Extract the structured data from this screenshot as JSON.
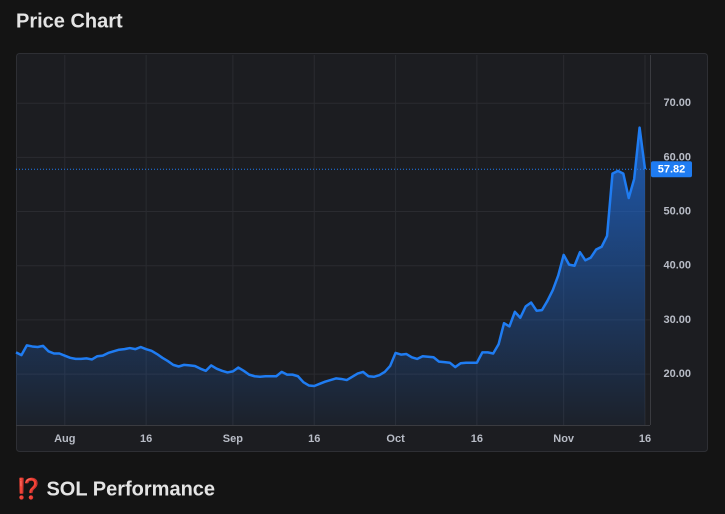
{
  "header": {
    "title": "Price Chart"
  },
  "chart_data": {
    "type": "area",
    "categories": [
      "Jul 23",
      "Jul 24",
      "Jul 25",
      "Jul 26",
      "Jul 27",
      "Jul 28",
      "Jul 29",
      "Jul 30",
      "Jul 31",
      "Aug 1",
      "Aug 2",
      "Aug 3",
      "Aug 4",
      "Aug 5",
      "Aug 6",
      "Aug 7",
      "Aug 8",
      "Aug 9",
      "Aug 10",
      "Aug 11",
      "Aug 12",
      "Aug 13",
      "Aug 14",
      "Aug 15",
      "Aug 16",
      "Aug 17",
      "Aug 18",
      "Aug 19",
      "Aug 20",
      "Aug 21",
      "Aug 22",
      "Aug 23",
      "Aug 24",
      "Aug 25",
      "Aug 26",
      "Aug 27",
      "Aug 28",
      "Aug 29",
      "Aug 30",
      "Aug 31",
      "Sep 1",
      "Sep 2",
      "Sep 3",
      "Sep 4",
      "Sep 5",
      "Sep 6",
      "Sep 7",
      "Sep 8",
      "Sep 9",
      "Sep 10",
      "Sep 11",
      "Sep 12",
      "Sep 13",
      "Sep 14",
      "Sep 15",
      "Sep 16",
      "Sep 17",
      "Sep 18",
      "Sep 19",
      "Sep 20",
      "Sep 21",
      "Sep 22",
      "Sep 23",
      "Sep 24",
      "Sep 25",
      "Sep 26",
      "Sep 27",
      "Sep 28",
      "Sep 29",
      "Sep 30",
      "Oct 1",
      "Oct 2",
      "Oct 3",
      "Oct 4",
      "Oct 5",
      "Oct 6",
      "Oct 7",
      "Oct 8",
      "Oct 9",
      "Oct 10",
      "Oct 11",
      "Oct 12",
      "Oct 13",
      "Oct 14",
      "Oct 15",
      "Oct 16",
      "Oct 17",
      "Oct 18",
      "Oct 19",
      "Oct 20",
      "Oct 21",
      "Oct 22",
      "Oct 23",
      "Oct 24",
      "Oct 25",
      "Oct 26",
      "Oct 27",
      "Oct 28",
      "Oct 29",
      "Oct 30",
      "Oct 31",
      "Nov 1",
      "Nov 2",
      "Nov 3",
      "Nov 4",
      "Nov 5",
      "Nov 6",
      "Nov 7",
      "Nov 8",
      "Nov 9",
      "Nov 10",
      "Nov 11",
      "Nov 12",
      "Nov 13",
      "Nov 14",
      "Nov 15",
      "Nov 16"
    ],
    "values": [
      24.0,
      23.5,
      25.3,
      25.1,
      25.0,
      25.2,
      24.2,
      23.8,
      23.8,
      23.4,
      23.0,
      22.8,
      22.8,
      22.9,
      22.7,
      23.3,
      23.4,
      23.9,
      24.2,
      24.5,
      24.6,
      24.8,
      24.6,
      25.0,
      24.6,
      24.3,
      23.7,
      23.0,
      22.4,
      21.7,
      21.4,
      21.7,
      21.6,
      21.5,
      21.0,
      20.6,
      21.6,
      21.0,
      20.6,
      20.3,
      20.5,
      21.2,
      20.6,
      19.9,
      19.6,
      19.5,
      19.6,
      19.6,
      19.6,
      20.4,
      19.9,
      19.9,
      19.6,
      18.5,
      17.9,
      17.8,
      18.2,
      18.6,
      18.9,
      19.2,
      19.1,
      18.9,
      19.5,
      20.1,
      20.4,
      19.6,
      19.5,
      19.8,
      20.4,
      21.5,
      23.9,
      23.6,
      23.7,
      23.1,
      22.8,
      23.3,
      23.2,
      23.1,
      22.3,
      22.2,
      22.1,
      21.3,
      22.0,
      22.1,
      22.1,
      22.1,
      24.0,
      24.0,
      23.8,
      25.5,
      29.4,
      28.8,
      31.5,
      30.4,
      32.5,
      33.2,
      31.7,
      31.8,
      33.5,
      35.5,
      38.2,
      42.0,
      40.2,
      40.0,
      42.5,
      41.0,
      41.5,
      43.0,
      43.5,
      45.5,
      57.0,
      57.5,
      57.0,
      52.5,
      56.0,
      65.5,
      57.82
    ],
    "color": "#1f7cf2",
    "ylim": [
      10.6,
      78.9
    ],
    "yticks": [
      {
        "value": 20,
        "label": "20.00"
      },
      {
        "value": 30,
        "label": "30.00"
      },
      {
        "value": 40,
        "label": "40.00"
      },
      {
        "value": 50,
        "label": "50.00"
      },
      {
        "value": 60,
        "label": "60.00"
      },
      {
        "value": 70,
        "label": "70.00"
      }
    ],
    "xticks": [
      {
        "value": "Aug 1",
        "label": "Aug"
      },
      {
        "value": "Aug 16",
        "label": "16"
      },
      {
        "value": "Sep 1",
        "label": "Sep"
      },
      {
        "value": "Sep 16",
        "label": "16"
      },
      {
        "value": "Oct 1",
        "label": "Oct"
      },
      {
        "value": "Oct 16",
        "label": "16"
      },
      {
        "value": "Nov 1",
        "label": "Nov"
      },
      {
        "value": "Nov 16",
        "label": "16"
      }
    ],
    "grid": true
  },
  "section": {
    "title": "⁉️ SOL Performance"
  }
}
